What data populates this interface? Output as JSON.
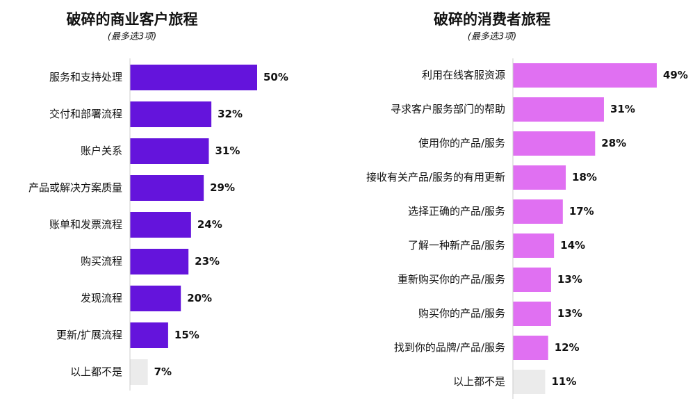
{
  "chart_data": [
    {
      "type": "bar",
      "orientation": "horizontal",
      "title": "破碎的商业客户旅程",
      "subtitle": "(最多选3项)",
      "categories": [
        "服务和支持处理",
        "交付和部署流程",
        "账户关系",
        "产品或解决方案质量",
        "账单和发票流程",
        "购买流程",
        "发现流程",
        "更新/扩展流程",
        "以上都不是"
      ],
      "values": [
        50,
        32,
        31,
        29,
        24,
        23,
        20,
        15,
        7
      ],
      "value_labels": [
        "50%",
        "32%",
        "31%",
        "29%",
        "24%",
        "23%",
        "20%",
        "15%",
        "7%"
      ],
      "colors": [
        "#6414dc",
        "#6414dc",
        "#6414dc",
        "#6414dc",
        "#6414dc",
        "#6414dc",
        "#6414dc",
        "#6414dc",
        "#ebebeb"
      ]
    },
    {
      "type": "bar",
      "orientation": "horizontal",
      "title": "破碎的消费者旅程",
      "subtitle": "(最多选3项)",
      "categories": [
        "利用在线客服资源",
        "寻求客户服务部门的帮助",
        "使用你的产品/服务",
        "接收有关产品/服务的有用更新",
        "选择正确的产品/服务",
        "了解一种新产品/服务",
        "重新购买你的产品/服务",
        "购买你的产品/服务",
        "找到你的品牌/产品/服务",
        "以上都不是"
      ],
      "values": [
        49,
        31,
        28,
        18,
        17,
        14,
        13,
        13,
        12,
        11
      ],
      "value_labels": [
        "49%",
        "31%",
        "28%",
        "18%",
        "17%",
        "14%",
        "13%",
        "13%",
        "12%",
        "11%"
      ],
      "colors": [
        "#e070f2",
        "#e070f2",
        "#e070f2",
        "#e070f2",
        "#e070f2",
        "#e070f2",
        "#e070f2",
        "#e070f2",
        "#e070f2",
        "#ebebeb"
      ]
    }
  ]
}
